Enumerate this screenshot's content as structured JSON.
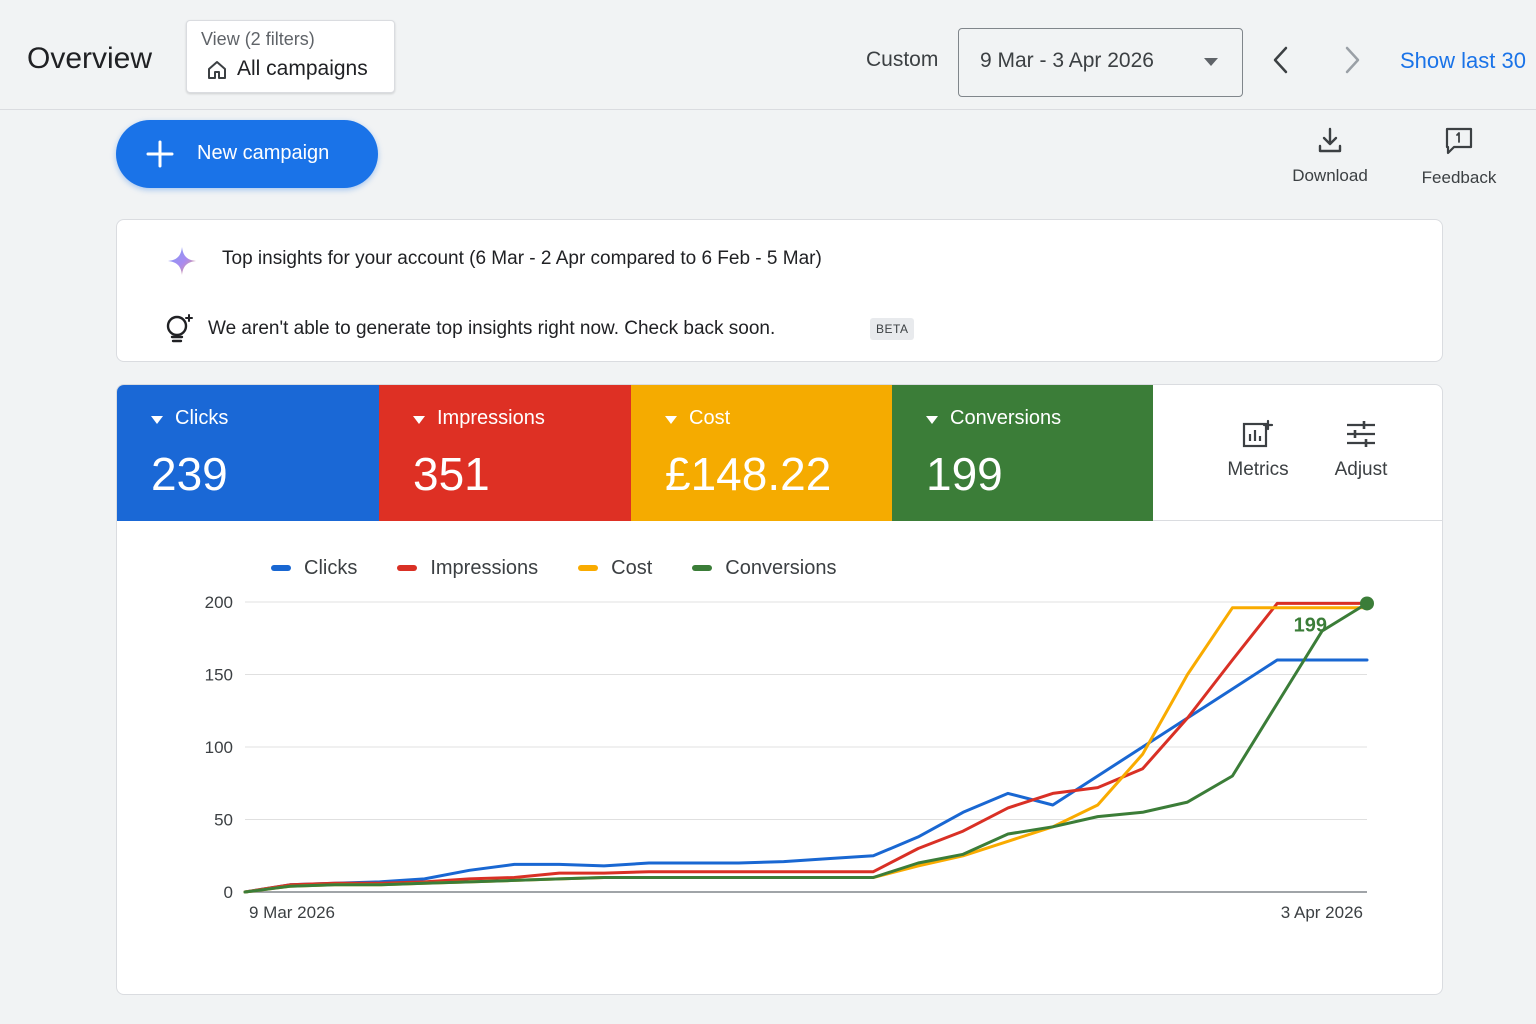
{
  "header": {
    "page_title": "Overview",
    "view_label": "View (2 filters)",
    "view_value": "All campaigns",
    "view_icon": "home-icon",
    "custom_label": "Custom",
    "date_range": "9 Mar - 3 Apr 2026",
    "prev_icon": "chevron-left-icon",
    "next_icon": "chevron-right-icon",
    "show_last": "Show last 30"
  },
  "toolbar": {
    "new_campaign": "New campaign",
    "download": "Download",
    "feedback": "Feedback"
  },
  "insights": {
    "title": "Top insights for your account (6 Mar - 2 Apr compared to 6 Feb - 5 Mar)",
    "message": "We aren't able to generate top insights right now. Check back soon.",
    "badge": "BETA"
  },
  "metrics": [
    {
      "label": "Clicks",
      "value": "239",
      "color": "#1a68d6"
    },
    {
      "label": "Impressions",
      "value": "351",
      "color": "#de3024"
    },
    {
      "label": "Cost",
      "value": "£148.22",
      "color": "#f5ab00"
    },
    {
      "label": "Conversions",
      "value": "199",
      "color": "#3b7d38"
    }
  ],
  "side_actions": {
    "metrics": "Metrics",
    "adjust": "Adjust"
  },
  "chart_data": {
    "type": "line",
    "x": [
      "9 Mar 2026",
      "10 Mar",
      "11 Mar",
      "12 Mar",
      "13 Mar",
      "14 Mar",
      "15 Mar",
      "16 Mar",
      "17 Mar",
      "18 Mar",
      "19 Mar",
      "20 Mar",
      "21 Mar",
      "22 Mar",
      "23 Mar",
      "24 Mar",
      "25 Mar",
      "26 Mar",
      "27 Mar",
      "28 Mar",
      "29 Mar",
      "30 Mar",
      "31 Mar",
      "1 Apr",
      "2 Apr",
      "3 Apr 2026"
    ],
    "x_tick_labels": [
      "9 Mar 2026",
      "3 Apr 2026"
    ],
    "yticks": [
      0,
      50,
      100,
      150,
      200
    ],
    "ylim": [
      0,
      200
    ],
    "grid": true,
    "legend": "top-left",
    "series": [
      {
        "name": "Clicks",
        "color": "#1967d2",
        "values": [
          0,
          5,
          6,
          7,
          9,
          15,
          19,
          19,
          18,
          20,
          20,
          20,
          21,
          23,
          25,
          38,
          55,
          68,
          60,
          80,
          100,
          120,
          140,
          160,
          160,
          160
        ]
      },
      {
        "name": "Impressions",
        "color": "#d93025",
        "values": [
          0,
          5,
          6,
          6,
          7,
          9,
          10,
          13,
          13,
          14,
          14,
          14,
          14,
          14,
          14,
          30,
          42,
          58,
          68,
          72,
          85,
          120,
          160,
          199,
          199,
          199
        ]
      },
      {
        "name": "Cost",
        "color": "#f9ab00",
        "values": [
          0,
          4,
          5,
          5,
          6,
          7,
          8,
          9,
          10,
          10,
          10,
          10,
          10,
          10,
          10,
          18,
          25,
          35,
          45,
          60,
          95,
          150,
          196,
          196,
          196,
          196
        ]
      },
      {
        "name": "Conversions",
        "color": "#3b7d38",
        "values": [
          0,
          4,
          5,
          5,
          6,
          7,
          8,
          9,
          10,
          10,
          10,
          10,
          10,
          10,
          10,
          20,
          26,
          40,
          45,
          52,
          55,
          62,
          80,
          130,
          180,
          199
        ]
      }
    ],
    "annotation": {
      "text": "199",
      "series": "Conversions"
    }
  }
}
